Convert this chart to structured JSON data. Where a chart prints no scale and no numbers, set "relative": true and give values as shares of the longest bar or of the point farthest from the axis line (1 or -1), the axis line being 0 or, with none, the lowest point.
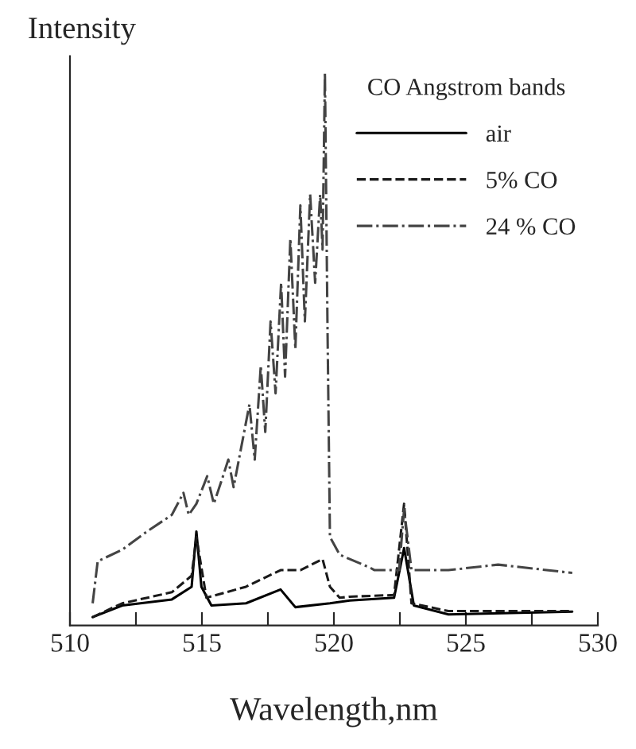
{
  "chart_data": {
    "type": "line",
    "relative": true,
    "ylabel": "Intensity",
    "xlabel": "Wavelength,nm",
    "legend_title": "CO Angstrom bands",
    "legend": "top right",
    "grid": false,
    "xlim": [
      510,
      530
    ],
    "xticks": [
      510,
      {
        "value": 512.5,
        "label": null
      },
      515,
      {
        "value": 517.5,
        "label": null
      },
      520,
      {
        "value": 522.5,
        "label": null
      },
      525,
      {
        "value": 527.5,
        "label": null
      },
      530
    ],
    "series": [
      {
        "name": "air",
        "color": "#000000",
        "line_style": "solid",
        "x": [
          510.86,
          511.98,
          513.86,
          514.61,
          514.79,
          514.98,
          515.36,
          516.67,
          517.98,
          518.54,
          519.85,
          520.6,
          522.28,
          522.66,
          523.03,
          524.34,
          529.03
        ],
        "values": [
          0.015,
          0.036,
          0.047,
          0.07,
          0.17,
          0.07,
          0.036,
          0.04,
          0.065,
          0.033,
          0.04,
          0.045,
          0.05,
          0.14,
          0.036,
          0.02,
          0.025
        ]
      },
      {
        "name": "5% CO",
        "color": "#1a1a1a",
        "line_style": "dashed",
        "x": [
          510.86,
          511.98,
          513.86,
          514.61,
          514.79,
          515.17,
          516.67,
          517.98,
          518.73,
          519.57,
          519.85,
          520.22,
          520.6,
          522.28,
          522.66,
          522.94,
          524.34,
          529.03
        ],
        "values": [
          0.015,
          0.04,
          0.06,
          0.09,
          0.16,
          0.05,
          0.07,
          0.1,
          0.1,
          0.12,
          0.07,
          0.05,
          0.052,
          0.055,
          0.22,
          0.04,
          0.026,
          0.026
        ]
      },
      {
        "name": "24 % CO",
        "color": "#444444",
        "line_style": "dashdot",
        "x": [
          510.86,
          511.05,
          511.98,
          512.92,
          513.86,
          514.3,
          514.5,
          514.79,
          515.2,
          515.45,
          515.73,
          516.0,
          516.2,
          516.48,
          516.8,
          517.0,
          517.23,
          517.4,
          517.6,
          517.79,
          518.0,
          518.15,
          518.35,
          518.54,
          518.73,
          518.9,
          519.1,
          519.29,
          519.48,
          519.57,
          519.66,
          519.76,
          519.85,
          520.22,
          520.6,
          521.35,
          521.54,
          522.47,
          522.66,
          522.94,
          524.34,
          526.22,
          529.03
        ],
        "values": [
          0.04,
          0.116,
          0.137,
          0.17,
          0.2,
          0.24,
          0.2,
          0.22,
          0.27,
          0.22,
          0.26,
          0.3,
          0.25,
          0.32,
          0.4,
          0.3,
          0.47,
          0.35,
          0.55,
          0.42,
          0.62,
          0.45,
          0.7,
          0.5,
          0.76,
          0.55,
          0.78,
          0.62,
          0.78,
          0.68,
          1.0,
          0.53,
          0.16,
          0.128,
          0.12,
          0.105,
          0.1,
          0.1,
          0.21,
          0.1,
          0.1,
          0.11,
          0.095
        ]
      }
    ]
  }
}
